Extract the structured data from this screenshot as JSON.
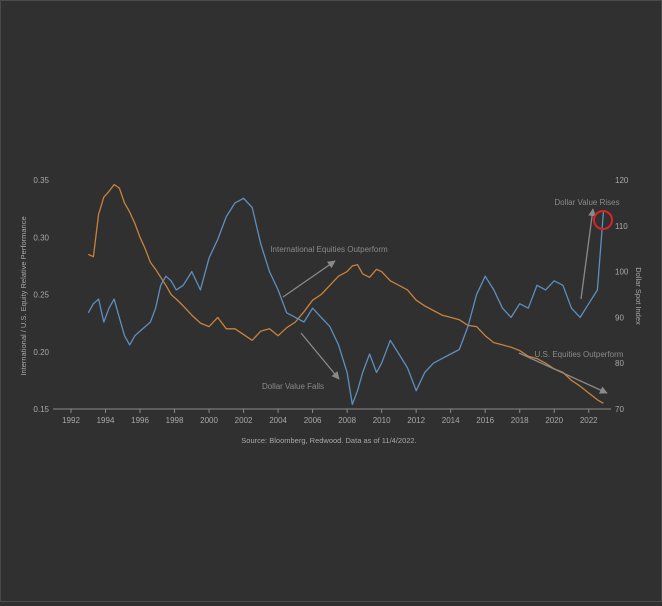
{
  "chart_data": {
    "type": "line",
    "title": "",
    "xlabel": "",
    "ylabel_left": "International / U.S. Equity Relative Performance",
    "ylabel_right": "Dollar Spot Index",
    "source": "Source: Bloomberg, Redwood. Data as of 11/4/2022.",
    "x_ticks": [
      "1992",
      "1994",
      "1996",
      "1998",
      "2000",
      "2002",
      "2004",
      "2006",
      "2008",
      "2010",
      "2012",
      "2014",
      "2016",
      "2018",
      "2020",
      "2022"
    ],
    "xlim": [
      1992,
      2023
    ],
    "left_ticks": [
      "0.15",
      "0.20",
      "0.25",
      "0.30",
      "0.35"
    ],
    "left_ylim": [
      0.15,
      0.35
    ],
    "right_ticks": [
      "70",
      "80",
      "90",
      "100",
      "110",
      "120"
    ],
    "right_ylim": [
      70,
      120
    ],
    "colors": {
      "relative_performance": "#c8823c",
      "dollar": "#5e8fbf",
      "annotation": "#8a8a8a",
      "highlight": "#d82424",
      "text": "#a8a8a8"
    },
    "annotations": [
      "International Equities Outperform",
      "Dollar Value Rises",
      "Dollar Value Falls",
      "U.S. Equities Outperform"
    ],
    "series": [
      {
        "axis": "left",
        "x": [
          1993.0,
          1993.3,
          1993.6,
          1993.9,
          1994.2,
          1994.5,
          1994.8,
          1995.1,
          1995.4,
          1995.7,
          1996.0,
          1996.3,
          1996.6,
          1996.9,
          1997.2,
          1997.5,
          1997.8,
          1998.1,
          1998.5,
          1999.0,
          1999.5,
          2000.0,
          2000.5,
          2001.0,
          2001.5,
          2002.0,
          2002.5,
          2003.0,
          2003.5,
          2004.0,
          2004.5,
          2005.0,
          2005.5,
          2006.0,
          2006.5,
          2007.0,
          2007.5,
          2008.0,
          2008.3,
          2008.6,
          2008.9,
          2009.3,
          2009.7,
          2010.0,
          2010.5,
          2011.0,
          2011.5,
          2012.0,
          2012.5,
          2013.0,
          2013.5,
          2014.0,
          2014.5,
          2015.0,
          2015.5,
          2016.0,
          2016.5,
          2017.0,
          2017.5,
          2018.0,
          2018.5,
          2019.0,
          2019.5,
          2020.0,
          2020.5,
          2021.0,
          2021.5,
          2022.0,
          2022.5,
          2022.85
        ],
        "values": [
          0.285,
          0.283,
          0.32,
          0.335,
          0.34,
          0.346,
          0.343,
          0.33,
          0.322,
          0.312,
          0.3,
          0.29,
          0.278,
          0.272,
          0.265,
          0.258,
          0.25,
          0.246,
          0.24,
          0.232,
          0.225,
          0.222,
          0.23,
          0.22,
          0.22,
          0.215,
          0.21,
          0.218,
          0.22,
          0.214,
          0.221,
          0.226,
          0.235,
          0.245,
          0.25,
          0.258,
          0.266,
          0.27,
          0.275,
          0.276,
          0.268,
          0.265,
          0.272,
          0.27,
          0.262,
          0.258,
          0.254,
          0.245,
          0.24,
          0.236,
          0.232,
          0.23,
          0.228,
          0.223,
          0.222,
          0.214,
          0.208,
          0.206,
          0.204,
          0.201,
          0.196,
          0.194,
          0.19,
          0.185,
          0.182,
          0.175,
          0.17,
          0.164,
          0.158,
          0.155
        ]
      },
      {
        "axis": "right",
        "x": [
          1993.0,
          1993.3,
          1993.6,
          1993.9,
          1994.2,
          1994.5,
          1994.8,
          1995.1,
          1995.4,
          1995.7,
          1996.0,
          1996.3,
          1996.6,
          1996.9,
          1997.2,
          1997.5,
          1997.8,
          1998.1,
          1998.5,
          1999.0,
          1999.5,
          2000.0,
          2000.5,
          2001.0,
          2001.5,
          2002.0,
          2002.5,
          2003.0,
          2003.5,
          2004.0,
          2004.5,
          2005.0,
          2005.5,
          2006.0,
          2006.5,
          2007.0,
          2007.5,
          2008.0,
          2008.3,
          2008.6,
          2008.9,
          2009.3,
          2009.7,
          2010.0,
          2010.5,
          2011.0,
          2011.5,
          2012.0,
          2012.5,
          2013.0,
          2013.5,
          2014.0,
          2014.5,
          2015.0,
          2015.5,
          2016.0,
          2016.5,
          2017.0,
          2017.5,
          2018.0,
          2018.5,
          2019.0,
          2019.5,
          2020.0,
          2020.5,
          2021.0,
          2021.5,
          2022.0,
          2022.5,
          2022.85
        ],
        "values": [
          91,
          93,
          94,
          89,
          92,
          94,
          90,
          86,
          84,
          86,
          87,
          88,
          89,
          92,
          97,
          99,
          98,
          96,
          97,
          100,
          96,
          103,
          107,
          112,
          115,
          116,
          114,
          106,
          100,
          96,
          91,
          90,
          89,
          92,
          90,
          88,
          84,
          78,
          71,
          74,
          78,
          82,
          78,
          80,
          85,
          82,
          79,
          74,
          78,
          80,
          81,
          82,
          83,
          88,
          95,
          99,
          96,
          92,
          90,
          93,
          92,
          97,
          96,
          98,
          97,
          92,
          90,
          93,
          96,
          113
        ]
      }
    ]
  }
}
